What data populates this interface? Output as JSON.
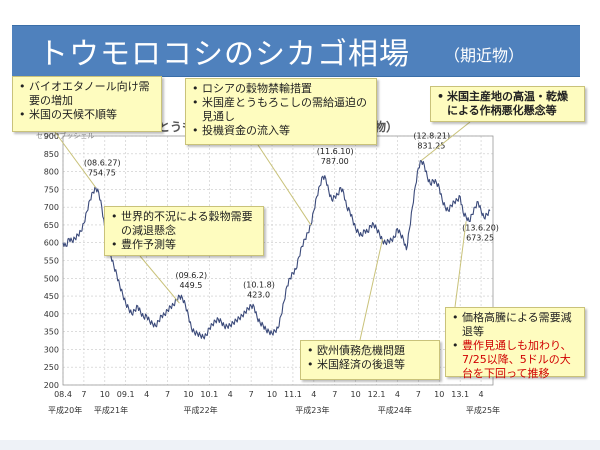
{
  "slide": {
    "title": "トウモロコシのシカゴ相場",
    "subtitle": "（期近物）"
  },
  "callouts": [
    {
      "id": "c1",
      "items": [
        {
          "text": "バイオエタノール向け需要の増加"
        },
        {
          "text": "米国の天候不順等"
        }
      ]
    },
    {
      "id": "c2",
      "items": [
        {
          "text": "ロシアの穀物禁輸措置"
        },
        {
          "text": "米国産とうもろこしの需給逼迫の見通し"
        },
        {
          "text": "投機資金の流入等"
        }
      ]
    },
    {
      "id": "c3",
      "items": [
        {
          "text": "米国主産地の高温・乾燥による作柄悪化懸念等"
        }
      ]
    },
    {
      "id": "c4",
      "items": [
        {
          "text": "世界的不況による穀物需要の減退懸念"
        },
        {
          "text": "豊作予測等"
        }
      ]
    },
    {
      "id": "c5",
      "items": [
        {
          "text": "欧州債務危機問題"
        },
        {
          "text": "米国経済の後退等"
        }
      ]
    },
    {
      "id": "c6",
      "items": [
        {
          "text": "価格高騰による需要減退等"
        },
        {
          "text": "豊作見通しも加わり、7/25以降、5ドルの大台を下回って推移",
          "color": "#d00000"
        }
      ]
    }
  ],
  "chart_data": {
    "type": "line",
    "title": "とうもろこしのシカゴ相場の推移（期近物）",
    "ylabel": "セント/ブッシェル",
    "ylim": [
      200,
      900
    ],
    "y_ticks": [
      200,
      250,
      300,
      350,
      400,
      450,
      500,
      550,
      600,
      650,
      700,
      750,
      800,
      850,
      900
    ],
    "x_ticks": [
      "08.4",
      "7",
      "10",
      "09.1",
      "4",
      "7",
      "10",
      "10.1",
      "4",
      "7",
      "10",
      "11.1",
      "4",
      "7",
      "10",
      "12.1",
      "4",
      "7",
      "10",
      "13.1",
      "4"
    ],
    "x_eras": [
      "平成20年",
      "平成21年",
      "平成22年",
      "平成23年",
      "平成24年",
      "平成25年"
    ],
    "grid": true,
    "line_color": "#3b4a7a",
    "series": [
      {
        "values": [
          [
            0,
            600
          ],
          [
            1,
            590
          ],
          [
            2,
            612
          ],
          [
            3,
            605
          ],
          [
            4,
            612
          ],
          [
            5,
            622
          ],
          [
            6,
            632
          ],
          [
            7,
            655
          ],
          [
            8,
            688
          ],
          [
            9,
            720
          ],
          [
            10,
            742
          ],
          [
            11,
            754.75
          ],
          [
            12,
            740
          ],
          [
            13,
            700
          ],
          [
            14,
            640
          ],
          [
            15,
            590
          ],
          [
            16,
            565
          ],
          [
            17,
            535
          ],
          [
            18,
            510
          ],
          [
            19,
            480
          ],
          [
            20,
            455
          ],
          [
            21,
            430
          ],
          [
            22,
            415
          ],
          [
            23,
            400
          ],
          [
            24,
            410
          ],
          [
            25,
            422
          ],
          [
            26,
            405
          ],
          [
            27,
            390
          ],
          [
            28,
            395
          ],
          [
            29,
            380
          ],
          [
            30,
            372
          ],
          [
            31,
            366
          ],
          [
            32,
            380
          ],
          [
            33,
            395
          ],
          [
            34,
            398
          ],
          [
            35,
            410
          ],
          [
            36,
            420
          ],
          [
            37,
            425
          ],
          [
            38,
            440
          ],
          [
            39,
            449.5
          ],
          [
            40,
            445
          ],
          [
            41,
            425
          ],
          [
            42,
            395
          ],
          [
            43,
            360
          ],
          [
            44,
            348
          ],
          [
            45,
            345
          ],
          [
            46,
            340
          ],
          [
            47,
            335
          ],
          [
            48,
            340
          ],
          [
            49,
            360
          ],
          [
            50,
            370
          ],
          [
            51,
            380
          ],
          [
            52,
            385
          ],
          [
            53,
            378
          ],
          [
            54,
            365
          ],
          [
            55,
            365
          ],
          [
            56,
            368
          ],
          [
            57,
            375
          ],
          [
            58,
            382
          ],
          [
            59,
            388
          ],
          [
            60,
            395
          ],
          [
            61,
            405
          ],
          [
            62,
            415
          ],
          [
            63,
            423
          ],
          [
            64,
            420
          ],
          [
            65,
            390
          ],
          [
            66,
            375
          ],
          [
            67,
            368
          ],
          [
            68,
            355
          ],
          [
            69,
            350
          ],
          [
            70,
            345
          ],
          [
            71,
            352
          ],
          [
            72,
            360
          ],
          [
            73,
            395
          ],
          [
            74,
            435
          ],
          [
            75,
            478
          ],
          [
            76,
            500
          ],
          [
            77,
            515
          ],
          [
            78,
            525
          ],
          [
            79,
            560
          ],
          [
            80,
            590
          ],
          [
            81,
            610
          ],
          [
            82,
            628
          ],
          [
            83,
            650
          ],
          [
            84,
            690
          ],
          [
            85,
            730
          ],
          [
            86,
            760
          ],
          [
            87,
            787
          ],
          [
            88,
            780
          ],
          [
            89,
            745
          ],
          [
            90,
            720
          ],
          [
            91,
            730
          ],
          [
            92,
            735
          ],
          [
            93,
            755
          ],
          [
            94,
            740
          ],
          [
            95,
            700
          ],
          [
            96,
            690
          ],
          [
            97,
            665
          ],
          [
            98,
            640
          ],
          [
            99,
            628
          ],
          [
            100,
            620
          ],
          [
            101,
            635
          ],
          [
            102,
            630
          ],
          [
            103,
            648
          ],
          [
            104,
            652
          ],
          [
            105,
            640
          ],
          [
            106,
            625
          ],
          [
            107,
            605
          ],
          [
            108,
            600
          ],
          [
            109,
            605
          ],
          [
            110,
            608
          ],
          [
            111,
            615
          ],
          [
            112,
            640
          ],
          [
            113,
            625
          ],
          [
            114,
            610
          ],
          [
            115,
            580
          ],
          [
            116,
            638
          ],
          [
            117,
            700
          ],
          [
            118,
            760
          ],
          [
            119,
            810
          ],
          [
            120,
            831.25
          ],
          [
            121,
            818
          ],
          [
            122,
            785
          ],
          [
            123,
            765
          ],
          [
            124,
            775
          ],
          [
            125,
            770
          ],
          [
            126,
            755
          ],
          [
            127,
            720
          ],
          [
            128,
            700
          ],
          [
            129,
            690
          ],
          [
            130,
            705
          ],
          [
            131,
            715
          ],
          [
            132,
            720
          ],
          [
            133,
            730
          ],
          [
            134,
            685
          ],
          [
            135,
            673.25
          ],
          [
            136,
            660
          ],
          [
            137,
            680
          ],
          [
            138,
            700
          ],
          [
            139,
            715
          ],
          [
            140,
            690
          ],
          [
            141,
            670
          ],
          [
            142,
            680
          ],
          [
            143,
            690
          ]
        ]
      }
    ],
    "annotations": [
      {
        "label": "(08.6.27)",
        "value": "754.75",
        "x": 11,
        "y": 754.75
      },
      {
        "label": "(09.6.2)",
        "value": "449.5",
        "x": 39,
        "y": 449.5
      },
      {
        "label": "(10.1.8)",
        "value": "423.0",
        "x": 63,
        "y": 423
      },
      {
        "label": "(11.6.10)",
        "value": "787.00",
        "x": 87,
        "y": 787
      },
      {
        "label": "(12.8.21)",
        "value": "831.25",
        "x": 120,
        "y": 831.25
      },
      {
        "label": "(13.6.20)",
        "value": "673.25",
        "x": 135,
        "y": 673.25
      }
    ]
  }
}
